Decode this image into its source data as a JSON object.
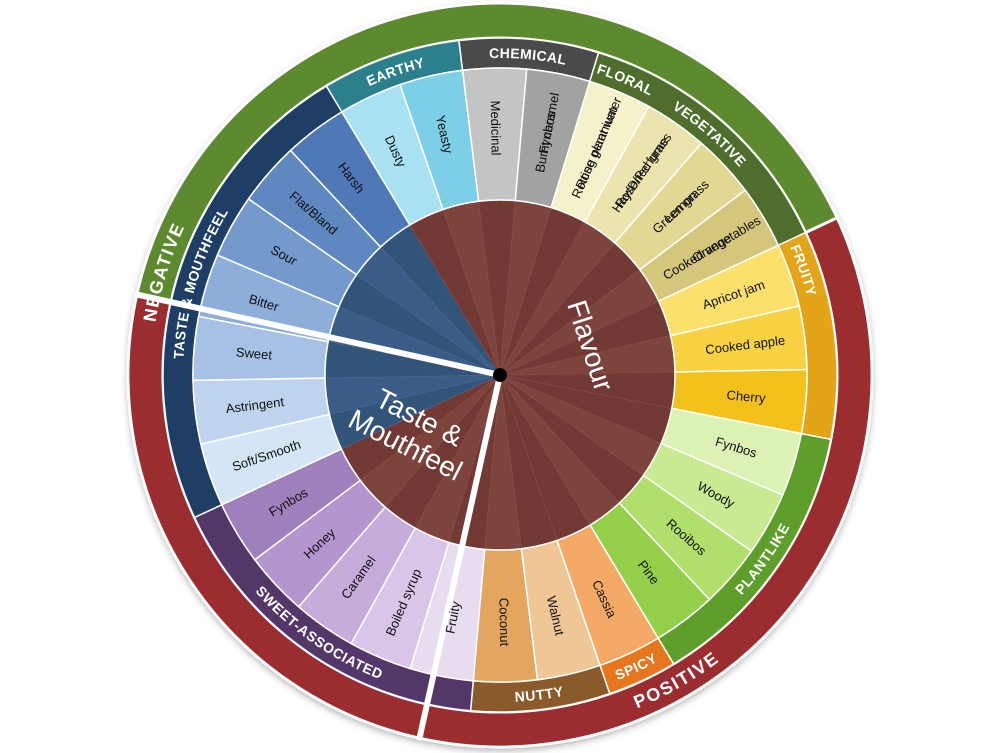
{
  "wheel": {
    "tiers": [
      {
        "id": "positive",
        "label": "POSITIVE",
        "color": "#9b2c2f",
        "labelAngle": 150,
        "flip": true
      },
      {
        "id": "negative",
        "label": "NEGATIVE",
        "color": "#5d8a2f",
        "labelAngle": 287,
        "flip": false
      },
      {
        "id": "taste-mouthfeel-outer",
        "label": "",
        "color": "#9b2c2f",
        "labelAngle": null,
        "flip": false
      }
    ],
    "centers": [
      {
        "id": "flavour",
        "lines": [
          "Flavour"
        ],
        "color": "#7a3f3a"
      },
      {
        "id": "taste",
        "lines": [
          "Taste &",
          "Mouthfeel"
        ],
        "color": "#2f4d73"
      }
    ],
    "categories": [
      {
        "id": "floral",
        "label": "FLORAL",
        "color": "#a8373a",
        "items": [
          {
            "label": "Fynbos",
            "color": "#f6c6cc"
          },
          {
            "label": "Rose geranium",
            "color": "#eea1a8"
          },
          {
            "label": "Rose/Perfume",
            "color": "#e07b84"
          }
        ]
      },
      {
        "id": "fruity",
        "label": "FRUITY",
        "color": "#e3a418",
        "items": [
          {
            "label": "Lemon",
            "color": "#fdf3b4"
          },
          {
            "label": "Orange",
            "color": "#fcea8e"
          },
          {
            "label": "Apricot jam",
            "color": "#fbe06c"
          },
          {
            "label": "Cooked apple",
            "color": "#f8d243"
          },
          {
            "label": "Cherry",
            "color": "#f3c11b"
          }
        ]
      },
      {
        "id": "plantlike",
        "label": "PLANTLIKE",
        "color": "#5e9e2b",
        "items": [
          {
            "label": "Fynbos",
            "color": "#dcf2b5"
          },
          {
            "label": "Woody",
            "color": "#c9ea92"
          },
          {
            "label": "Rooibos",
            "color": "#b1df6c"
          },
          {
            "label": "Pine",
            "color": "#93cf49"
          }
        ]
      },
      {
        "id": "spicy",
        "label": "SPICY",
        "color": "#e8761e",
        "items": [
          {
            "label": "Cassia",
            "color": "#f5a967"
          }
        ]
      },
      {
        "id": "nutty",
        "label": "NUTTY",
        "color": "#8a5a2a",
        "items": [
          {
            "label": "Walnut",
            "color": "#efc796"
          },
          {
            "label": "Coconut",
            "color": "#e4a55e"
          }
        ]
      },
      {
        "id": "sweet",
        "label": "SWEET-ASSOCIATED",
        "color": "#523768",
        "items": [
          {
            "label": "Fruity",
            "color": "#e8dcf1"
          },
          {
            "label": "Boiled syrup",
            "color": "#d8c5e7"
          },
          {
            "label": "Caramel",
            "color": "#c6abdb"
          },
          {
            "label": "Honey",
            "color": "#b595ce"
          },
          {
            "label": "Fynbos",
            "color": "#a07fbd"
          }
        ]
      },
      {
        "id": "taste",
        "label": "TASTE & MOUTHFEEL",
        "color": "#1f3e66",
        "items": [
          {
            "label": "Soft/Smooth",
            "color": "#d4e5f7"
          },
          {
            "label": "Astringent",
            "color": "#bed4ee"
          },
          {
            "label": "Sweet",
            "color": "#a6c1e5"
          },
          {
            "label": "Bitter",
            "color": "#8dadda"
          },
          {
            "label": "Sour",
            "color": "#7399cd"
          },
          {
            "label": "Flat/Bland",
            "color": "#5f88c1"
          },
          {
            "label": "Harsh",
            "color": "#4f79b6"
          }
        ]
      },
      {
        "id": "earthy",
        "label": "EARTHY",
        "color": "#2c7f8c",
        "items": [
          {
            "label": "Dusty",
            "color": "#a8e2f2"
          },
          {
            "label": "Yeasty",
            "color": "#7ccfe6"
          }
        ]
      },
      {
        "id": "chemical",
        "label": "CHEMICAL",
        "color": "#4a4a4a",
        "items": [
          {
            "label": "Medicinal",
            "color": "#c4c4c4"
          },
          {
            "label": "Burnt caramel",
            "color": "#a2a2a2"
          }
        ]
      },
      {
        "id": "vegetative",
        "label": "VEGETATIVE",
        "color": "#4f6e2e",
        "items": [
          {
            "label": "Rotting plant water",
            "color": "#f5f1cb"
          },
          {
            "label": "Hay/Dried grass",
            "color": "#ece4ae"
          },
          {
            "label": "Green grass",
            "color": "#e2d793"
          },
          {
            "label": "Cooked vegetables",
            "color": "#d4c67a"
          }
        ]
      }
    ]
  }
}
